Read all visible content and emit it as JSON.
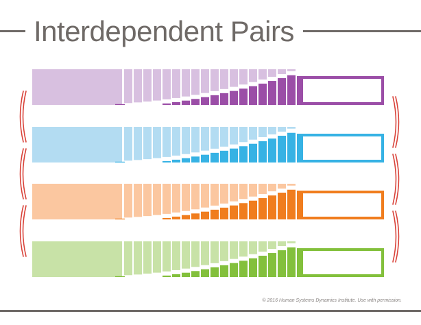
{
  "title": "Interdependent Pairs",
  "footer": {
    "copyright": "© 2016 Human Systems Dynamics Institute. Use with permission."
  },
  "colors": {
    "rule": "#6f6a67",
    "connector": "#d9433a",
    "box_fill": "#ffffff"
  },
  "pairs": [
    {
      "light": "#d8c0e0",
      "dark": "#9b4ea7"
    },
    {
      "light": "#b3dcf2",
      "dark": "#36b2e4"
    },
    {
      "light": "#fbc7a0",
      "dark": "#f07d1e"
    },
    {
      "light": "#c8e2a7",
      "dark": "#83c03c"
    }
  ],
  "connectors": {
    "left": [
      "pair-1-to-2",
      "pair-2-to-3",
      "pair-3-to-4"
    ],
    "right": [
      "pair-1-to-2",
      "pair-2-to-3",
      "pair-3-to-4"
    ]
  },
  "right_boxes": [
    {
      "value": ""
    },
    {
      "value": ""
    },
    {
      "value": ""
    },
    {
      "value": ""
    }
  ]
}
